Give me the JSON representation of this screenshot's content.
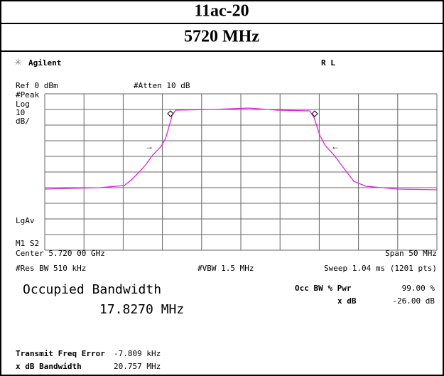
{
  "header": {
    "title": "11ac-20",
    "subtitle": "5720 MHz"
  },
  "screen": {
    "brand": "Agilent",
    "status": "R L",
    "ref": "Ref 0 dBm",
    "atten": "#Atten 10 dB",
    "left_labels": [
      "#Peak",
      "Log",
      "10",
      "dB/"
    ],
    "lgav": "LgAv",
    "marker": "M1 S2",
    "center": "Center 5.720 00 GHz",
    "span": "Span 50 MHz",
    "rbw": "#Res BW 510 kHz",
    "vbw": "#VBW 1.5 MHz",
    "sweep": "Sweep 1.04 ms (1201 pts)",
    "occ_title": "Occupied Bandwidth",
    "occ_value": "17.8270 MHz",
    "pwr_label": "Occ BW % Pwr",
    "pwr_value": "99.00 %",
    "xdb_label": "x dB",
    "xdb_value": "-26.00 dB",
    "tfe_label": "Transmit Freq Error",
    "tfe_value": "-7.809 kHz",
    "xbw_label": "x dB Bandwidth",
    "xbw_value": "20.757 MHz"
  }
}
